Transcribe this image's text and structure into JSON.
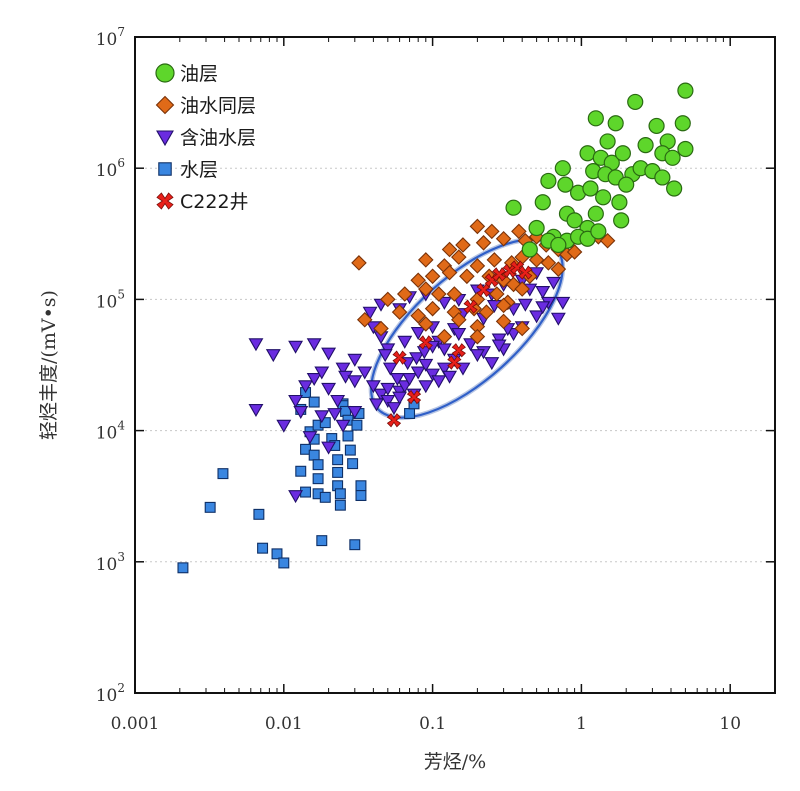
{
  "chart_data": {
    "type": "scatter",
    "x_scale": "log",
    "y_scale": "log",
    "xlabel": "芳烃/%",
    "ylabel": "轻烃丰度/(mV•s)",
    "xlim": [
      0.001,
      20
    ],
    "ylim": [
      100,
      10000000
    ],
    "grid": "horizontal dotted at decades",
    "x_ticks": [
      {
        "value": 0.001,
        "label": "0.001"
      },
      {
        "value": 0.01,
        "label": "0.01"
      },
      {
        "value": 0.1,
        "label": "0.1"
      },
      {
        "value": 1,
        "label": "1"
      },
      {
        "value": 10,
        "label": "10"
      }
    ],
    "y_ticks": [
      {
        "value": 100,
        "base": "10",
        "exp": "2"
      },
      {
        "value": 1000,
        "base": "10",
        "exp": "3"
      },
      {
        "value": 10000,
        "base": "10",
        "exp": "4"
      },
      {
        "value": 100000,
        "base": "10",
        "exp": "5"
      },
      {
        "value": 1000000,
        "base": "10",
        "exp": "6"
      },
      {
        "value": 10000000,
        "base": "10",
        "exp": "7"
      }
    ],
    "legend_position": "top-left",
    "ellipse": {
      "center_x": 0.17,
      "center_y": 60000,
      "color": "#2f5fc8"
    },
    "series": [
      {
        "name": "油层",
        "marker": "circle",
        "color": "#5ed62b",
        "stroke": "#2a6a12",
        "points": [
          [
            1.25,
            2400000
          ],
          [
            2.3,
            3200000
          ],
          [
            5,
            3900000
          ],
          [
            1.5,
            1600000
          ],
          [
            1.7,
            2200000
          ],
          [
            3.2,
            2100000
          ],
          [
            3.8,
            1600000
          ],
          [
            4.8,
            2200000
          ],
          [
            5,
            1400000
          ],
          [
            1.1,
            1300000
          ],
          [
            1.35,
            1200000
          ],
          [
            1.6,
            1100000
          ],
          [
            1.9,
            1300000
          ],
          [
            2.7,
            1500000
          ],
          [
            3.5,
            1300000
          ],
          [
            4.1,
            1200000
          ],
          [
            0.75,
            1000000
          ],
          [
            1.2,
            950000
          ],
          [
            1.45,
            900000
          ],
          [
            1.7,
            850000
          ],
          [
            2.2,
            900000
          ],
          [
            2.5,
            1000000
          ],
          [
            3,
            950000
          ],
          [
            3.5,
            850000
          ],
          [
            4.2,
            700000
          ],
          [
            0.6,
            800000
          ],
          [
            0.78,
            750000
          ],
          [
            0.95,
            650000
          ],
          [
            1.15,
            700000
          ],
          [
            1.4,
            600000
          ],
          [
            1.8,
            550000
          ],
          [
            2,
            750000
          ],
          [
            0.35,
            500000
          ],
          [
            0.55,
            550000
          ],
          [
            0.8,
            450000
          ],
          [
            0.9,
            400000
          ],
          [
            1.1,
            350000
          ],
          [
            1.25,
            450000
          ],
          [
            1.85,
            400000
          ],
          [
            0.5,
            350000
          ],
          [
            0.65,
            300000
          ],
          [
            0.8,
            280000
          ],
          [
            0.95,
            300000
          ],
          [
            1.1,
            290000
          ],
          [
            1.3,
            330000
          ],
          [
            0.45,
            240000
          ],
          [
            0.6,
            280000
          ],
          [
            0.7,
            260000
          ]
        ]
      },
      {
        "name": "油水同层",
        "marker": "diamond",
        "color": "#e06a18",
        "stroke": "#7a3208",
        "points": [
          [
            0.032,
            190000
          ],
          [
            0.2,
            360000
          ],
          [
            0.25,
            330000
          ],
          [
            0.38,
            330000
          ],
          [
            0.13,
            240000
          ],
          [
            0.16,
            260000
          ],
          [
            0.22,
            270000
          ],
          [
            0.3,
            290000
          ],
          [
            0.42,
            280000
          ],
          [
            0.5,
            300000
          ],
          [
            0.58,
            260000
          ],
          [
            0.7,
            240000
          ],
          [
            0.8,
            220000
          ],
          [
            0.9,
            230000
          ],
          [
            1.3,
            300000
          ],
          [
            1.5,
            280000
          ],
          [
            0.09,
            200000
          ],
          [
            0.12,
            180000
          ],
          [
            0.15,
            210000
          ],
          [
            0.2,
            180000
          ],
          [
            0.26,
            200000
          ],
          [
            0.34,
            190000
          ],
          [
            0.4,
            210000
          ],
          [
            0.5,
            200000
          ],
          [
            0.6,
            190000
          ],
          [
            0.7,
            170000
          ],
          [
            0.08,
            140000
          ],
          [
            0.1,
            150000
          ],
          [
            0.13,
            160000
          ],
          [
            0.17,
            150000
          ],
          [
            0.24,
            150000
          ],
          [
            0.3,
            140000
          ],
          [
            0.35,
            130000
          ],
          [
            0.45,
            150000
          ],
          [
            0.05,
            100000
          ],
          [
            0.065,
            110000
          ],
          [
            0.09,
            120000
          ],
          [
            0.11,
            110000
          ],
          [
            0.14,
            110000
          ],
          [
            0.2,
            100000
          ],
          [
            0.27,
            110000
          ],
          [
            0.32,
            95000
          ],
          [
            0.4,
            120000
          ],
          [
            0.06,
            80000
          ],
          [
            0.08,
            75000
          ],
          [
            0.1,
            85000
          ],
          [
            0.14,
            80000
          ],
          [
            0.19,
            85000
          ],
          [
            0.23,
            80000
          ],
          [
            0.3,
            90000
          ],
          [
            0.035,
            70000
          ],
          [
            0.045,
            60000
          ],
          [
            0.09,
            65000
          ],
          [
            0.15,
            70000
          ],
          [
            0.2,
            62000
          ],
          [
            0.3,
            68000
          ],
          [
            0.4,
            60000
          ],
          [
            0.12,
            52000
          ],
          [
            0.2,
            52000
          ]
        ]
      },
      {
        "name": "含油水层",
        "marker": "triangle-down",
        "color": "#6a2ce0",
        "stroke": "#22106a",
        "points": [
          [
            0.0065,
            46000
          ],
          [
            0.0085,
            38000
          ],
          [
            0.012,
            44000
          ],
          [
            0.016,
            46000
          ],
          [
            0.02,
            39000
          ],
          [
            0.025,
            30000
          ],
          [
            0.03,
            35000
          ],
          [
            0.038,
            80000
          ],
          [
            0.04,
            62000
          ],
          [
            0.045,
            52000
          ],
          [
            0.05,
            42000
          ],
          [
            0.065,
            48000
          ],
          [
            0.08,
            56000
          ],
          [
            0.1,
            62000
          ],
          [
            0.11,
            48000
          ],
          [
            0.14,
            60000
          ],
          [
            0.18,
            46000
          ],
          [
            0.22,
            40000
          ],
          [
            0.28,
            50000
          ],
          [
            0.35,
            55000
          ],
          [
            0.4,
            62000
          ],
          [
            0.5,
            75000
          ],
          [
            0.6,
            95000
          ],
          [
            0.7,
            72000
          ],
          [
            0.0065,
            14500
          ],
          [
            0.01,
            11000
          ],
          [
            0.012,
            17000
          ],
          [
            0.014,
            22000
          ],
          [
            0.016,
            25000
          ],
          [
            0.018,
            28000
          ],
          [
            0.02,
            21000
          ],
          [
            0.023,
            17000
          ],
          [
            0.026,
            26000
          ],
          [
            0.03,
            24000
          ],
          [
            0.035,
            28000
          ],
          [
            0.04,
            22000
          ],
          [
            0.045,
            19000
          ],
          [
            0.05,
            17000
          ],
          [
            0.055,
            15000
          ],
          [
            0.06,
            20000
          ],
          [
            0.065,
            22000
          ],
          [
            0.07,
            25000
          ],
          [
            0.08,
            28000
          ],
          [
            0.09,
            32000
          ],
          [
            0.1,
            27000
          ],
          [
            0.12,
            30000
          ],
          [
            0.14,
            35000
          ],
          [
            0.16,
            30000
          ],
          [
            0.2,
            38000
          ],
          [
            0.25,
            33000
          ],
          [
            0.3,
            42000
          ],
          [
            0.013,
            14000
          ],
          [
            0.018,
            13000
          ],
          [
            0.022,
            13500
          ],
          [
            0.03,
            14000
          ],
          [
            0.042,
            16000
          ],
          [
            0.05,
            21000
          ],
          [
            0.06,
            18000
          ],
          [
            0.075,
            19000
          ],
          [
            0.09,
            22000
          ],
          [
            0.11,
            24000
          ],
          [
            0.13,
            26000
          ],
          [
            0.015,
            9000
          ],
          [
            0.02,
            7500
          ],
          [
            0.025,
            11000
          ],
          [
            0.012,
            3200
          ],
          [
            0.045,
            92000
          ],
          [
            0.06,
            85000
          ],
          [
            0.07,
            105000
          ],
          [
            0.09,
            110000
          ],
          [
            0.12,
            95000
          ],
          [
            0.15,
            100000
          ],
          [
            0.2,
            118000
          ],
          [
            0.25,
            110000
          ],
          [
            0.3,
            130000
          ],
          [
            0.4,
            140000
          ],
          [
            0.5,
            160000
          ],
          [
            0.45,
            120000
          ],
          [
            0.55,
            115000
          ],
          [
            0.65,
            135000
          ],
          [
            0.16,
            78000
          ],
          [
            0.22,
            72000
          ],
          [
            0.26,
            90000
          ],
          [
            0.35,
            85000
          ],
          [
            0.42,
            92000
          ],
          [
            0.55,
            88000
          ],
          [
            0.75,
            95000
          ],
          [
            0.048,
            38000
          ],
          [
            0.052,
            30000
          ],
          [
            0.058,
            25000
          ],
          [
            0.068,
            33000
          ],
          [
            0.078,
            36000
          ],
          [
            0.088,
            40000
          ],
          [
            0.1,
            44000
          ],
          [
            0.12,
            42000
          ],
          [
            0.15,
            55000
          ],
          [
            0.28,
            45000
          ],
          [
            0.32,
            60000
          ]
        ]
      },
      {
        "name": "水层",
        "marker": "square",
        "color": "#3a86e0",
        "stroke": "#0e2f66",
        "points": [
          [
            0.0021,
            900
          ],
          [
            0.0032,
            2600
          ],
          [
            0.0039,
            4700
          ],
          [
            0.0072,
            1270
          ],
          [
            0.0068,
            2300
          ],
          [
            0.009,
            1150
          ],
          [
            0.01,
            980
          ],
          [
            0.013,
            14500
          ],
          [
            0.013,
            4900
          ],
          [
            0.014,
            3400
          ],
          [
            0.014,
            7200
          ],
          [
            0.015,
            9800
          ],
          [
            0.016,
            8600
          ],
          [
            0.016,
            6500
          ],
          [
            0.017,
            5500
          ],
          [
            0.017,
            4300
          ],
          [
            0.017,
            3300
          ],
          [
            0.017,
            11000
          ],
          [
            0.019,
            11500
          ],
          [
            0.019,
            3100
          ],
          [
            0.018,
            1450
          ],
          [
            0.021,
            8700
          ],
          [
            0.022,
            7700
          ],
          [
            0.023,
            6000
          ],
          [
            0.023,
            4800
          ],
          [
            0.023,
            3800
          ],
          [
            0.024,
            3300
          ],
          [
            0.024,
            2700
          ],
          [
            0.025,
            16000
          ],
          [
            0.025,
            15500
          ],
          [
            0.026,
            14000
          ],
          [
            0.027,
            12000
          ],
          [
            0.027,
            9100
          ],
          [
            0.028,
            7100
          ],
          [
            0.029,
            5600
          ],
          [
            0.03,
            1350
          ],
          [
            0.031,
            11000
          ],
          [
            0.032,
            13500
          ],
          [
            0.033,
            3800
          ],
          [
            0.033,
            3200
          ],
          [
            0.014,
            19500
          ],
          [
            0.016,
            16500
          ],
          [
            0.07,
            13500
          ],
          [
            0.075,
            16000
          ]
        ]
      },
      {
        "name": "C222井",
        "marker": "x",
        "color": "#e8201a",
        "stroke": "#7a0d08",
        "points": [
          [
            0.055,
            12000
          ],
          [
            0.06,
            36000
          ],
          [
            0.075,
            18000
          ],
          [
            0.09,
            47000
          ],
          [
            0.14,
            33000
          ],
          [
            0.15,
            41000
          ],
          [
            0.18,
            88000
          ],
          [
            0.22,
            118000
          ],
          [
            0.25,
            140000
          ],
          [
            0.28,
            155000
          ],
          [
            0.33,
            165000
          ],
          [
            0.37,
            175000
          ],
          [
            0.42,
            160000
          ]
        ]
      }
    ]
  }
}
